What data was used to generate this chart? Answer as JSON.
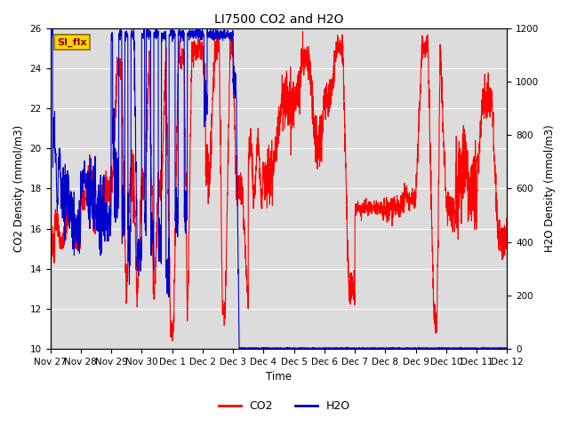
{
  "title": "LI7500 CO2 and H2O",
  "xlabel": "Time",
  "ylabel_left": "CO2 Density (mmol/m3)",
  "ylabel_right": "H2O Density (mmol/m3)",
  "ylim_left": [
    10,
    26
  ],
  "ylim_right": [
    0,
    1200
  ],
  "yticks_left": [
    10,
    12,
    14,
    16,
    18,
    20,
    22,
    24,
    26
  ],
  "yticks_right": [
    0,
    200,
    400,
    600,
    800,
    1000,
    1200
  ],
  "xtick_labels": [
    "Nov 27",
    "Nov 28",
    "Nov 29",
    "Nov 30",
    "Dec 1",
    "Dec 2",
    "Dec 3",
    "Dec 4",
    "Dec 5",
    "Dec 6",
    "Dec 7",
    "Dec 8",
    "Dec 9",
    "Dec 10",
    "Dec 11",
    "Dec 12"
  ],
  "annotation_text": "SI_flx",
  "annotation_color": "#8B0000",
  "annotation_bg": "#FFD700",
  "background_color": "#DCDCDC",
  "co2_color": "#FF0000",
  "h2o_color": "#0000CC",
  "legend_co2": "CO2",
  "legend_h2o": "H2O",
  "linewidth": 0.8,
  "title_fontsize": 10,
  "label_fontsize": 8.5,
  "tick_fontsize": 7.5
}
